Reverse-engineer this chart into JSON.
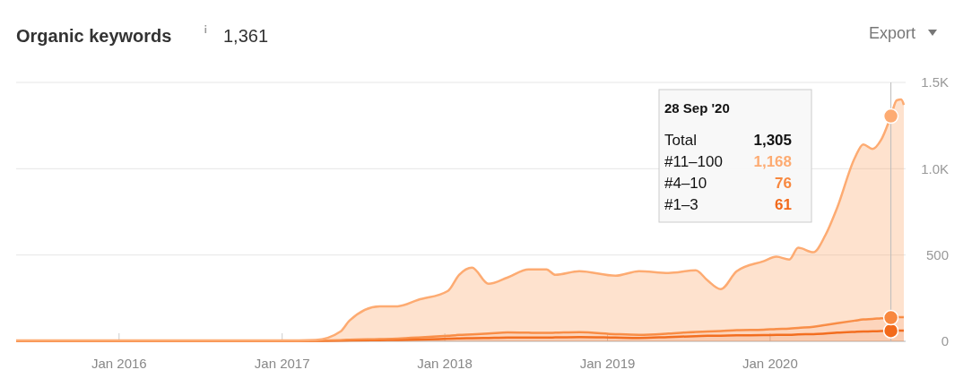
{
  "chart_data": {
    "type": "area",
    "stacked": true,
    "title": "Organic keywords",
    "subtitle": "1,361",
    "annotations": [
      "Export",
      "28 Sep '20",
      "Total",
      "1,305",
      "#11–100",
      "1,168",
      "#4–10",
      "76",
      "#1–3",
      "61"
    ],
    "x": [
      "2015-05-15",
      "2017-01-01",
      "2017-03-17",
      "2017-05-12",
      "2017-06-01",
      "2017-08-08",
      "2017-09-17",
      "2017-11-02",
      "2018-01-08",
      "2018-02-02",
      "2018-03-03",
      "2018-04-09",
      "2018-05-22",
      "2018-07-08",
      "2018-08-17",
      "2018-09-06",
      "2018-10-30",
      "2019-01-19",
      "2019-03-13",
      "2019-05-18",
      "2019-07-18",
      "2019-08-13",
      "2019-09-12",
      "2019-10-18",
      "2019-12-17",
      "2020-01-15",
      "2020-02-13",
      "2020-03-04",
      "2020-04-07",
      "2020-05-04",
      "2020-05-30",
      "2020-07-09",
      "2020-07-28",
      "2020-08-18",
      "2020-09-06",
      "2020-09-28",
      "2020-10-11",
      "2020-10-21",
      "2020-10-27"
    ],
    "series": [
      {
        "color": "#f26a1b",
        "values": [
          2,
          2,
          3,
          4,
          5,
          7,
          8,
          10,
          15,
          17,
          18,
          20,
          22,
          22,
          22,
          23,
          25,
          22,
          20,
          25,
          30,
          32,
          33,
          35,
          36,
          38,
          38,
          40,
          42,
          45,
          50,
          55,
          57,
          58,
          60,
          61,
          62,
          62,
          62
        ]
      },
      {
        "color": "#f8883f",
        "values": [
          1,
          1,
          1,
          3,
          4,
          6,
          8,
          12,
          18,
          20,
          22,
          25,
          30,
          28,
          27,
          27,
          28,
          20,
          18,
          20,
          25,
          25,
          27,
          30,
          32,
          34,
          36,
          38,
          42,
          50,
          55,
          65,
          70,
          72,
          74,
          76,
          78,
          78,
          78
        ]
      },
      {
        "color": "#fdab72",
        "values": [
          2,
          2,
          4,
          50,
          111,
          190,
          187,
          218,
          259,
          348,
          387,
          288,
          318,
          367,
          368,
          335,
          353,
          338,
          368,
          351,
          356,
          297,
          242,
          341,
          396,
          418,
          400,
          464,
          432,
          520,
          666,
          943,
          1014,
          985,
          1033,
          1168,
          1256,
          1261,
          1230
        ]
      }
    ],
    "xlim": [
      "2015-05-15",
      "2020-10-31"
    ],
    "xticks": [
      {
        "value": "2016-01-01",
        "label": "Jan 2016"
      },
      {
        "value": "2017-01-01",
        "label": "Jan 2017"
      },
      {
        "value": "2018-01-01",
        "label": "Jan 2018"
      },
      {
        "value": "2019-01-01",
        "label": "Jan 2019"
      },
      {
        "value": "2020-01-01",
        "label": "Jan 2020"
      }
    ],
    "ylim": [
      0,
      1500
    ],
    "yticks": [
      0,
      500,
      {
        "value": 1000,
        "label": "1.0K"
      },
      {
        "value": 1500,
        "label": "1.5K"
      }
    ],
    "grid": "y"
  }
}
